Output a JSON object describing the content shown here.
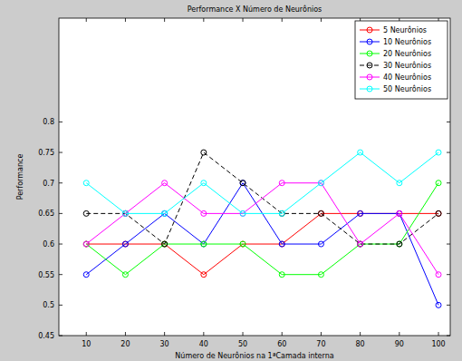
{
  "chart_data": {
    "type": "line",
    "title": "Performance X Número de Neurônios",
    "x_label": "Número de Neurônios na 1ªCamada interna",
    "y_label": "Performance",
    "x": [
      10,
      20,
      30,
      40,
      50,
      60,
      70,
      80,
      90,
      100
    ],
    "xlim": [
      3,
      103
    ],
    "xticks": [
      10,
      20,
      30,
      40,
      50,
      60,
      70,
      80,
      90,
      100
    ],
    "ylim": [
      0.45,
      0.97
    ],
    "yticks": [
      0.45,
      0.5,
      0.55,
      0.6,
      0.65,
      0.7,
      0.75,
      0.8
    ],
    "grid": false,
    "legend": "northeast",
    "series": [
      {
        "name": "5 Neurônios",
        "color": "#ff0000",
        "marker": "circle",
        "line_style": "solid",
        "values": [
          0.6,
          0.6,
          0.6,
          0.55,
          0.6,
          0.6,
          0.65,
          0.65,
          0.65,
          0.65
        ]
      },
      {
        "name": "10 Neurônios",
        "color": "#0000ff",
        "marker": "circle",
        "line_style": "solid",
        "values": [
          0.55,
          0.6,
          0.65,
          0.6,
          0.7,
          0.6,
          0.6,
          0.65,
          0.65,
          0.5
        ]
      },
      {
        "name": "20 Neurônios",
        "color": "#00ff00",
        "marker": "circle",
        "line_style": "solid",
        "values": [
          0.6,
          0.55,
          0.6,
          0.6,
          0.6,
          0.55,
          0.55,
          0.6,
          0.6,
          0.7
        ]
      },
      {
        "name": "30 Neurônios",
        "color": "#000000",
        "marker": "circle",
        "line_style": "dashed",
        "values": [
          0.65,
          0.65,
          0.6,
          0.75,
          0.7,
          0.65,
          0.65,
          0.6,
          0.6,
          0.65
        ]
      },
      {
        "name": "40 Neurônios",
        "color": "#ff00ff",
        "marker": "circle",
        "line_style": "solid",
        "values": [
          0.6,
          0.65,
          0.7,
          0.65,
          0.65,
          0.7,
          0.7,
          0.6,
          0.65,
          0.55
        ]
      },
      {
        "name": "50 Neurônios",
        "color": "#00ffff",
        "marker": "circle",
        "line_style": "solid",
        "values": [
          0.7,
          0.65,
          0.65,
          0.7,
          0.65,
          0.65,
          0.7,
          0.75,
          0.7,
          0.75
        ]
      }
    ]
  }
}
